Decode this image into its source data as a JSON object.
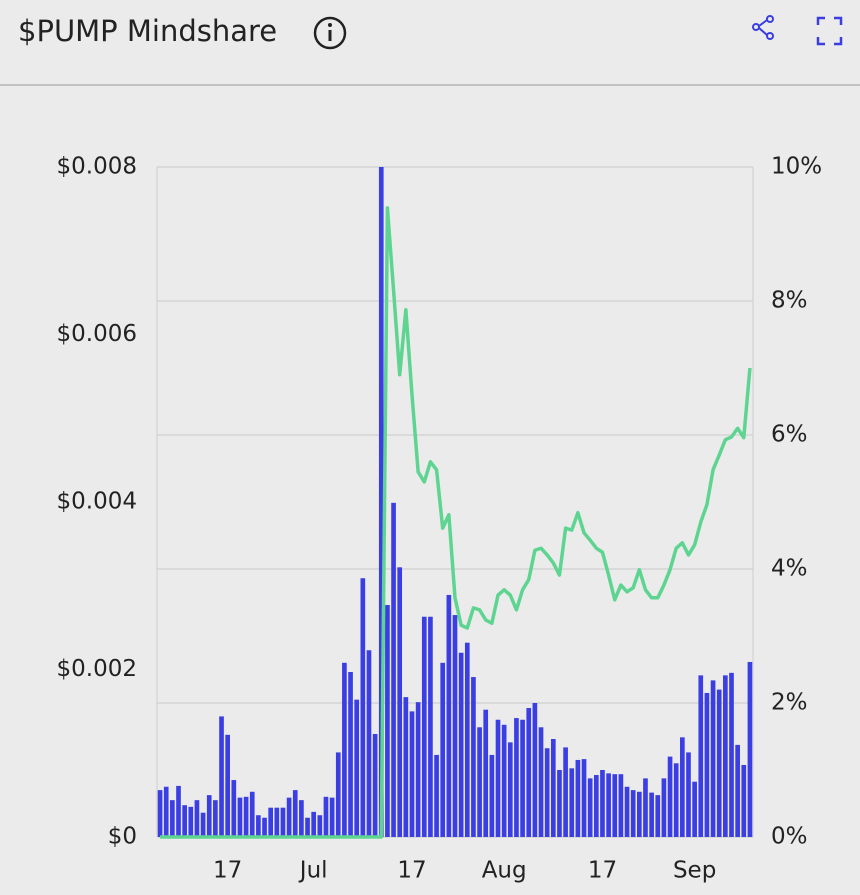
{
  "chart_data": {
    "type": "bar_line",
    "title": "$PUMP Mindshare",
    "categories": [
      null,
      null,
      null,
      null,
      null,
      null,
      null,
      null,
      null,
      null,
      null,
      "17",
      null,
      null,
      null,
      null,
      null,
      null,
      null,
      null,
      null,
      null,
      null,
      null,
      null,
      "Jul",
      null,
      null,
      null,
      null,
      null,
      null,
      null,
      null,
      null,
      null,
      null,
      null,
      null,
      null,
      null,
      "17",
      null,
      null,
      null,
      null,
      null,
      null,
      null,
      null,
      null,
      null,
      null,
      null,
      null,
      null,
      "Aug",
      null,
      null,
      null,
      null,
      null,
      null,
      null,
      null,
      null,
      null,
      null,
      null,
      null,
      null,
      null,
      "17",
      null,
      null,
      null,
      null,
      null,
      null,
      null,
      null,
      null,
      null,
      null,
      null,
      null,
      null,
      "Sep",
      null,
      null,
      null,
      null,
      null,
      null,
      null,
      null,
      null
    ],
    "series": [
      {
        "type": "bar",
        "color": "#3b3fe3",
        "values": [
          0.00056,
          0.0006,
          0.00044,
          0.00061,
          0.00038,
          0.00036,
          0.00044,
          0.00029,
          0.0005,
          0.00044,
          0.00144,
          0.00122,
          0.00068,
          0.00047,
          0.00048,
          0.00054,
          0.00026,
          0.00023,
          0.00035,
          0.00035,
          0.00035,
          0.00047,
          0.00056,
          0.00044,
          0.00023,
          0.0003,
          0.00026,
          0.00048,
          0.00047,
          0.00101,
          0.00208,
          0.00197,
          0.00164,
          0.00309,
          0.00223,
          0.00123,
          0.008,
          0.00277,
          0.00399,
          0.00322,
          0.00167,
          0.0015,
          0.00161,
          0.00263,
          0.00263,
          0.00098,
          0.00208,
          0.00289,
          0.00265,
          0.0022,
          0.00232,
          0.00191,
          0.00131,
          0.00152,
          0.00098,
          0.0014,
          0.00134,
          0.00113,
          0.00142,
          0.0014,
          0.00154,
          0.0016,
          0.00131,
          0.00106,
          0.00117,
          0.0008,
          0.00107,
          0.00082,
          0.00092,
          0.00093,
          0.0007,
          0.00074,
          0.0008,
          0.00076,
          0.00075,
          0.00075,
          0.0006,
          0.00056,
          0.00054,
          0.0007,
          0.00053,
          0.0005,
          0.0007,
          0.00096,
          0.00088,
          0.00119,
          0.00101,
          0.00066,
          0.00193,
          0.00172,
          0.00187,
          0.00176,
          0.00193,
          0.00196,
          0.0011,
          0.00086,
          0.00209
        ]
      },
      {
        "type": "line",
        "axis": "y2",
        "color": "#5ed491",
        "values": [
          0,
          0,
          0,
          0,
          0,
          0,
          0,
          0,
          0,
          0,
          0,
          0,
          0,
          0,
          0,
          0,
          0,
          0,
          0,
          0,
          0,
          0,
          0,
          0,
          0,
          0,
          0,
          0,
          0,
          0,
          0,
          0,
          0,
          0,
          0,
          0,
          0,
          9.39,
          8.16,
          6.9,
          7.87,
          6.6,
          5.45,
          5.3,
          5.6,
          5.48,
          4.61,
          4.81,
          3.57,
          3.16,
          3.12,
          3.42,
          3.39,
          3.24,
          3.19,
          3.61,
          3.69,
          3.61,
          3.39,
          3.69,
          3.84,
          4.28,
          4.31,
          4.21,
          4.09,
          3.91,
          4.61,
          4.58,
          4.84,
          4.54,
          4.43,
          4.31,
          4.25,
          3.91,
          3.54,
          3.76,
          3.66,
          3.72,
          3.99,
          3.69,
          3.57,
          3.57,
          3.76,
          3.99,
          4.31,
          4.39,
          4.21,
          4.36,
          4.7,
          4.96,
          5.48,
          5.7,
          5.93,
          5.97,
          6.1,
          5.96,
          7.0
        ]
      }
    ],
    "ylim": [
      0,
      0.008
    ],
    "yticks": [
      {
        "value": 0,
        "label": "$0"
      },
      {
        "value": 0.002,
        "label": "$0.002"
      },
      {
        "value": 0.004,
        "label": "$0.004"
      },
      {
        "value": 0.006,
        "label": "$0.006"
      },
      {
        "value": 0.008,
        "label": "$0.008"
      }
    ],
    "y2lim": [
      0,
      10
    ],
    "y2ticks": [
      {
        "value": 0,
        "label": "0%"
      },
      {
        "value": 2,
        "label": "2%"
      },
      {
        "value": 4,
        "label": "4%"
      },
      {
        "value": 6,
        "label": "6%"
      },
      {
        "value": 8,
        "label": "8%"
      },
      {
        "value": 10,
        "label": "10%"
      }
    ],
    "grid": true
  }
}
